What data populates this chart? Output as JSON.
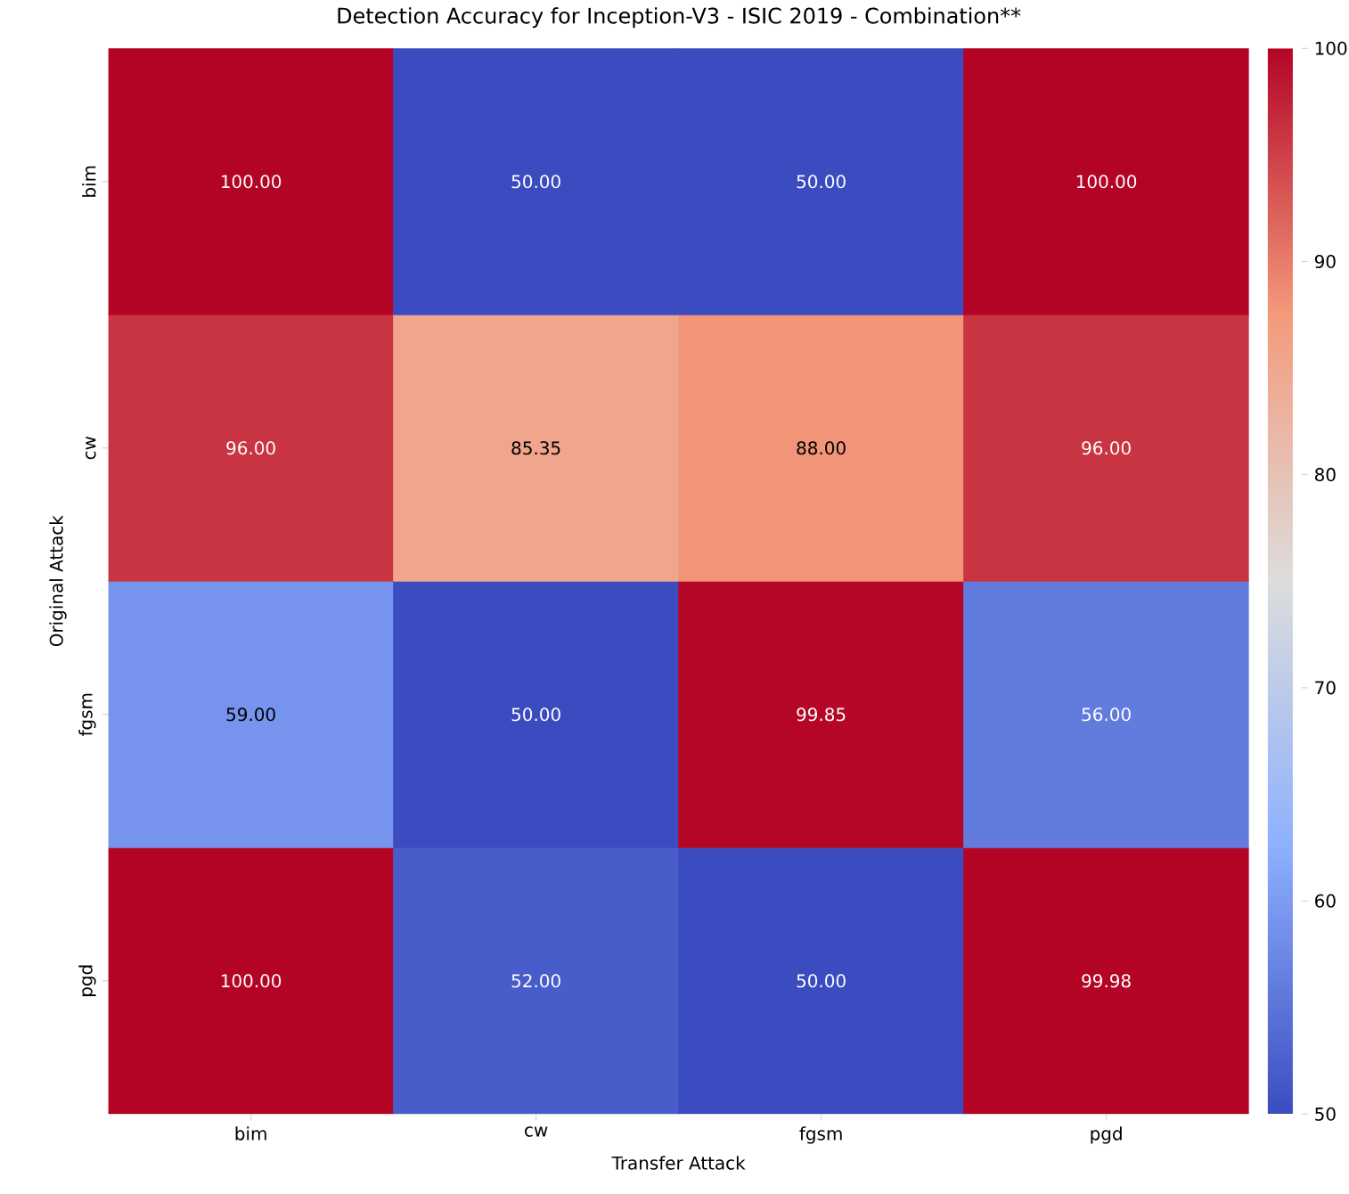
{
  "chart_data": {
    "type": "heatmap",
    "title": "Detection Accuracy for Inception-V3 - ISIC 2019 - Combination**",
    "xlabel": "Transfer Attack",
    "ylabel": "Original Attack",
    "categories": [
      "bim",
      "cw",
      "fgsm",
      "pgd"
    ],
    "y_categories": [
      "bim",
      "cw",
      "fgsm",
      "pgd"
    ],
    "cells": [
      [
        100,
        50,
        50,
        100
      ],
      [
        96,
        85.35,
        88,
        96
      ],
      [
        59,
        50,
        99.85,
        56
      ],
      [
        100,
        52,
        50,
        99.98
      ]
    ],
    "cell_labels": [
      [
        "100.00",
        "50.00",
        "50.00",
        "100.00"
      ],
      [
        "96.00",
        "85.35",
        "88.00",
        "96.00"
      ],
      [
        "59.00",
        "50.00",
        "99.85",
        "56.00"
      ],
      [
        "100.00",
        "52.00",
        "50.00",
        "99.98"
      ]
    ],
    "clim": [
      50,
      100
    ],
    "cticks": [
      50,
      60,
      70,
      80,
      90,
      100
    ]
  }
}
